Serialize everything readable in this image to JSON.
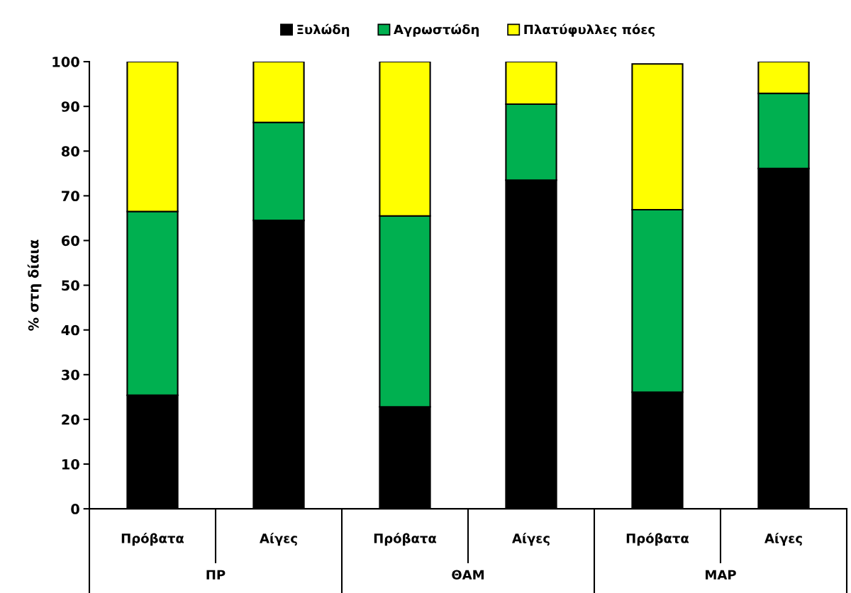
{
  "chart_data": {
    "type": "bar",
    "stacked": true,
    "ylabel": "% στη δίαια",
    "categories": [
      "Πρόβατα",
      "Αίγες",
      "Πρόβατα",
      "Αίγες",
      "Πρόβατα",
      "Αίγες"
    ],
    "annotations": [
      "ΠΡ",
      "ΘΑΜ",
      "ΜΑΡ"
    ],
    "series": [
      {
        "name": "Ξυλώδη",
        "color": "#000000",
        "values": [
          25.4,
          64.5,
          22.8,
          73.5,
          26.1,
          76.1
        ]
      },
      {
        "name": "Αγρωστώδη",
        "color": "#00b050",
        "values": [
          41.1,
          21.9,
          42.7,
          17.0,
          40.8,
          16.8
        ]
      },
      {
        "name": "Πλατύφυλλες πόες",
        "color": "#ffff00",
        "values": [
          33.5,
          13.6,
          34.5,
          9.5,
          32.6,
          7.1
        ]
      }
    ],
    "ylim": [
      0,
      100
    ],
    "yticks": [
      0,
      10,
      20,
      30,
      40,
      50,
      60,
      70,
      80,
      90,
      100
    ],
    "grid": false,
    "legend": "top"
  }
}
